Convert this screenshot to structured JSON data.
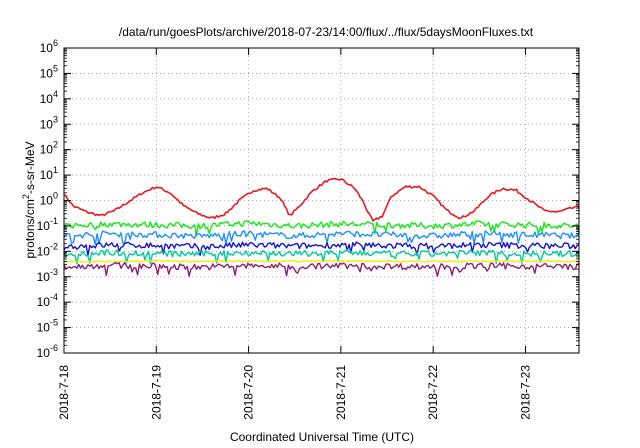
{
  "chart_data": {
    "type": "line",
    "title": "/data/run/goesPlots/archive/2018-07-23/14:00/flux/../flux/5daysMoonFluxes.txt",
    "xlabel": "Coordinated Universal Time (UTC)",
    "ylabel": "protons/cm²-s-sr-MeV",
    "yscale": "log",
    "ylim": [
      1e-06,
      1000000.0
    ],
    "xlim": [
      "2018-07-18T00:00",
      "2018-07-23T14:00"
    ],
    "grid": true,
    "x_ticks": [
      "2018-7-18",
      "2018-7-19",
      "2018-7-20",
      "2018-7-21",
      "2018-7-22",
      "2018-7-23"
    ],
    "y_ticks": [
      {
        "mant": "10",
        "exp": "6"
      },
      {
        "mant": "10",
        "exp": "5"
      },
      {
        "mant": "10",
        "exp": "4"
      },
      {
        "mant": "10",
        "exp": "3"
      },
      {
        "mant": "10",
        "exp": "2"
      },
      {
        "mant": "10",
        "exp": "1"
      },
      {
        "mant": "10",
        "exp": "0"
      },
      {
        "mant": "10",
        "exp": "-1"
      },
      {
        "mant": "10",
        "exp": "-2"
      },
      {
        "mant": "10",
        "exp": "-3"
      },
      {
        "mant": "10",
        "exp": "-4"
      },
      {
        "mant": "10",
        "exp": "-5"
      },
      {
        "mant": "10",
        "exp": "-6"
      }
    ],
    "series": [
      {
        "color": "#e8191f",
        "x_days": [
          0.0,
          0.1,
          0.25,
          0.4,
          0.55,
          0.7,
          0.85,
          1.0,
          1.15,
          1.3,
          1.45,
          1.6,
          1.75,
          1.9,
          2.05,
          2.2,
          2.35,
          2.4,
          2.45,
          2.55,
          2.7,
          2.85,
          3.0,
          3.15,
          3.25,
          3.3,
          3.35,
          3.45,
          3.55,
          3.7,
          3.85,
          4.0,
          4.15,
          4.3,
          4.45,
          4.6,
          4.75,
          4.9,
          5.05,
          5.2,
          5.35,
          5.5,
          5.58
        ],
        "values": [
          1.8,
          0.6,
          0.35,
          0.25,
          0.4,
          0.9,
          2.0,
          3.5,
          2.0,
          0.6,
          0.3,
          0.2,
          0.3,
          1.0,
          2.5,
          3.0,
          1.2,
          0.5,
          0.25,
          0.6,
          2.5,
          6.0,
          7.0,
          3.0,
          0.8,
          0.3,
          0.15,
          0.25,
          1.5,
          3.5,
          3.5,
          1.5,
          0.4,
          0.2,
          0.4,
          1.5,
          3.0,
          2.5,
          1.0,
          0.4,
          0.35,
          0.5,
          0.55
        ]
      },
      {
        "color": "#19e619",
        "x_days": [
          0.0,
          0.5,
          1.0,
          1.5,
          2.0,
          2.5,
          3.0,
          3.5,
          4.0,
          4.5,
          5.0,
          5.58
        ],
        "values": [
          0.1,
          0.12,
          0.11,
          0.1,
          0.13,
          0.1,
          0.12,
          0.11,
          0.1,
          0.12,
          0.11,
          0.1
        ]
      },
      {
        "color": "#1f8fff",
        "x_days": [
          0.0,
          0.5,
          1.0,
          1.5,
          2.0,
          2.5,
          3.0,
          3.5,
          4.0,
          4.5,
          5.0,
          5.58
        ],
        "values": [
          0.04,
          0.05,
          0.045,
          0.04,
          0.05,
          0.04,
          0.05,
          0.045,
          0.04,
          0.05,
          0.045,
          0.04
        ]
      },
      {
        "color": "#1414c8",
        "x_days": [
          0.0,
          0.5,
          1.0,
          1.5,
          2.0,
          2.5,
          3.0,
          3.5,
          4.0,
          4.5,
          5.0,
          5.58
        ],
        "values": [
          0.015,
          0.018,
          0.017,
          0.015,
          0.018,
          0.016,
          0.018,
          0.017,
          0.016,
          0.018,
          0.017,
          0.016
        ]
      },
      {
        "color": "#00c8a0",
        "x_days": [
          0.0,
          0.5,
          1.0,
          1.5,
          2.0,
          2.5,
          3.0,
          3.5,
          4.0,
          4.5,
          5.0,
          5.58
        ],
        "values": [
          0.008,
          0.009,
          0.008,
          0.008,
          0.009,
          0.008,
          0.009,
          0.008,
          0.008,
          0.009,
          0.008,
          0.008
        ]
      },
      {
        "color": "#f0f000",
        "x_days": [
          0.0,
          0.5,
          1.0,
          1.5,
          2.0,
          2.5,
          3.0,
          3.5,
          4.0,
          4.5,
          5.0,
          5.58
        ],
        "values": [
          0.004,
          0.004,
          0.0042,
          0.004,
          0.0041,
          0.004,
          0.0042,
          0.004,
          0.0041,
          0.004,
          0.0041,
          0.004
        ]
      },
      {
        "color": "#8c1e78",
        "x_days": [
          0.0,
          0.5,
          1.0,
          1.5,
          2.0,
          2.5,
          3.0,
          3.5,
          4.0,
          4.5,
          5.0,
          5.58
        ],
        "values": [
          0.0025,
          0.0028,
          0.0026,
          0.0024,
          0.0027,
          0.0025,
          0.0027,
          0.0026,
          0.0025,
          0.0027,
          0.0026,
          0.0025
        ]
      }
    ]
  }
}
